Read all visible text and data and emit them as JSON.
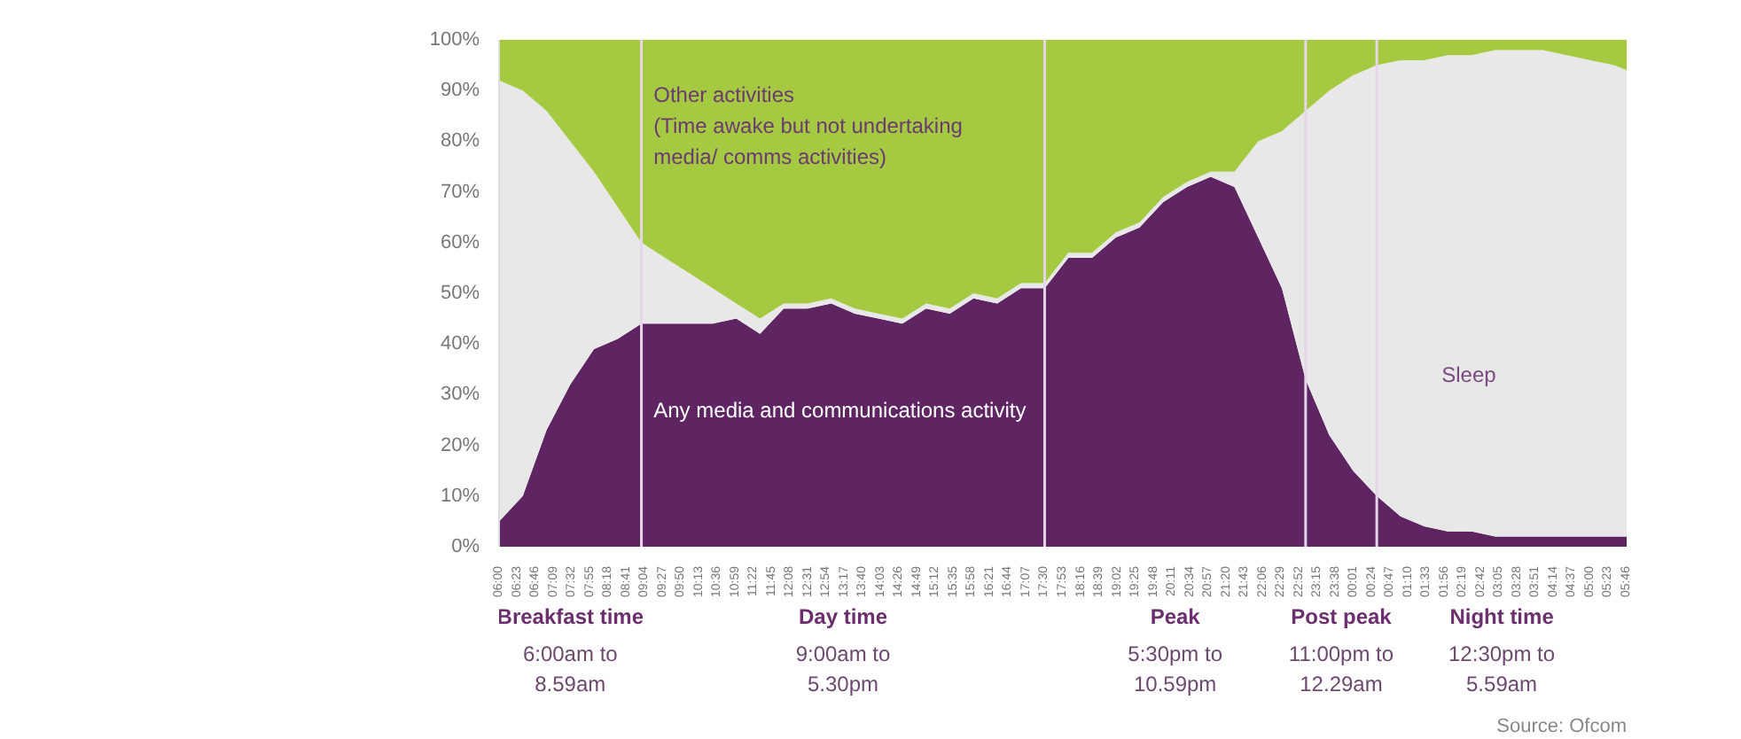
{
  "chart_data": {
    "type": "area",
    "stacked": true,
    "x": [
      "2000-01-01T06:00",
      "2000-01-01T06:30",
      "2000-01-01T07:00",
      "2000-01-01T07:30",
      "2000-01-01T08:00",
      "2000-01-01T08:30",
      "2000-01-01T09:00",
      "2000-01-01T09:30",
      "2000-01-01T10:00",
      "2000-01-01T10:30",
      "2000-01-01T11:00",
      "2000-01-01T11:30",
      "2000-01-01T12:00",
      "2000-01-01T12:30",
      "2000-01-01T13:00",
      "2000-01-01T13:30",
      "2000-01-01T14:00",
      "2000-01-01T14:30",
      "2000-01-01T15:00",
      "2000-01-01T15:30",
      "2000-01-01T16:00",
      "2000-01-01T16:30",
      "2000-01-01T17:00",
      "2000-01-01T17:30",
      "2000-01-01T18:00",
      "2000-01-01T18:30",
      "2000-01-01T19:00",
      "2000-01-01T19:30",
      "2000-01-01T20:00",
      "2000-01-01T20:30",
      "2000-01-01T21:00",
      "2000-01-01T21:30",
      "2000-01-01T22:00",
      "2000-01-01T22:30",
      "2000-01-01T23:00",
      "2000-01-01T23:30",
      "2000-01-02T00:00",
      "2000-01-02T00:30",
      "2000-01-02T01:00",
      "2000-01-02T01:30",
      "2000-01-02T02:00",
      "2000-01-02T02:30",
      "2000-01-02T03:00",
      "2000-01-02T03:30",
      "2000-01-02T04:00",
      "2000-01-02T04:30",
      "2000-01-02T05:00",
      "2000-01-02T05:30",
      "2000-01-02T05:46"
    ],
    "series": [
      {
        "name": "Any media and communications activity",
        "color": "#5f2462",
        "values": [
          5,
          10,
          23,
          32,
          39,
          41,
          44,
          44,
          44,
          44,
          45,
          42,
          47,
          47,
          48,
          46,
          45,
          44,
          47,
          46,
          49,
          48,
          51,
          51,
          57,
          57,
          61,
          63,
          68,
          71,
          73,
          71,
          61,
          51,
          33,
          22,
          15,
          10,
          6,
          4,
          3,
          3,
          2,
          2,
          2,
          2,
          2,
          2,
          2
        ]
      },
      {
        "name": "Sleep",
        "color": "#e8e8e8",
        "values": [
          87,
          80,
          63,
          48,
          35,
          26,
          16,
          13,
          10,
          7,
          3,
          3,
          1,
          1,
          1,
          1,
          1,
          1,
          1,
          1,
          1,
          1,
          1,
          1,
          1,
          1,
          1,
          1,
          1,
          1,
          1,
          3,
          19,
          31,
          53,
          68,
          78,
          85,
          90,
          92,
          94,
          94,
          96,
          96,
          96,
          95,
          94,
          93,
          92
        ]
      },
      {
        "name": "Other activities\n(Time awake but not undertaking\nmedia/ comms activities)",
        "color": "#a5c941",
        "values": [
          8,
          10,
          14,
          20,
          26,
          33,
          40,
          43,
          46,
          49,
          52,
          55,
          52,
          52,
          51,
          53,
          54,
          55,
          52,
          53,
          50,
          51,
          48,
          48,
          42,
          42,
          38,
          36,
          31,
          28,
          26,
          26,
          20,
          18,
          14,
          10,
          7,
          5,
          4,
          4,
          3,
          3,
          2,
          2,
          2,
          3,
          4,
          5,
          6
        ]
      }
    ],
    "xlim": [
      "2000-01-01T06:00",
      "2000-01-02T05:46"
    ],
    "xticks": [
      {
        "value": "2000-01-01T06:00",
        "label": "06:00"
      },
      {
        "value": "2000-01-01T06:23",
        "label": "06:23"
      },
      {
        "value": "2000-01-01T06:46",
        "label": "06:46"
      },
      {
        "value": "2000-01-01T07:09",
        "label": "07:09"
      },
      {
        "value": "2000-01-01T07:32",
        "label": "07:32"
      },
      {
        "value": "2000-01-01T07:55",
        "label": "07:55"
      },
      {
        "value": "2000-01-01T08:18",
        "label": "08:18"
      },
      {
        "value": "2000-01-01T08:41",
        "label": "08:41"
      },
      {
        "value": "2000-01-01T09:04",
        "label": "09:04"
      },
      {
        "value": "2000-01-01T09:27",
        "label": "09:27"
      },
      {
        "value": "2000-01-01T09:50",
        "label": "09:50"
      },
      {
        "value": "2000-01-01T10:13",
        "label": "10:13"
      },
      {
        "value": "2000-01-01T10:36",
        "label": "10:36"
      },
      {
        "value": "2000-01-01T10:59",
        "label": "10:59"
      },
      {
        "value": "2000-01-01T11:22",
        "label": "11:22"
      },
      {
        "value": "2000-01-01T11:45",
        "label": "11:45"
      },
      {
        "value": "2000-01-01T12:08",
        "label": "12:08"
      },
      {
        "value": "2000-01-01T12:31",
        "label": "12:31"
      },
      {
        "value": "2000-01-01T12:54",
        "label": "12:54"
      },
      {
        "value": "2000-01-01T13:17",
        "label": "13:17"
      },
      {
        "value": "2000-01-01T13:40",
        "label": "13:40"
      },
      {
        "value": "2000-01-01T14:03",
        "label": "14:03"
      },
      {
        "value": "2000-01-01T14:26",
        "label": "14:26"
      },
      {
        "value": "2000-01-01T14:49",
        "label": "14:49"
      },
      {
        "value": "2000-01-01T15:12",
        "label": "15:12"
      },
      {
        "value": "2000-01-01T15:35",
        "label": "15:35"
      },
      {
        "value": "2000-01-01T15:58",
        "label": "15:58"
      },
      {
        "value": "2000-01-01T16:21",
        "label": "16:21"
      },
      {
        "value": "2000-01-01T16:44",
        "label": "16:44"
      },
      {
        "value": "2000-01-01T17:07",
        "label": "17:07"
      },
      {
        "value": "2000-01-01T17:30",
        "label": "17:30"
      },
      {
        "value": "2000-01-01T17:53",
        "label": "17:53"
      },
      {
        "value": "2000-01-01T18:16",
        "label": "18:16"
      },
      {
        "value": "2000-01-01T18:39",
        "label": "18:39"
      },
      {
        "value": "2000-01-01T19:02",
        "label": "19:02"
      },
      {
        "value": "2000-01-01T19:25",
        "label": "19:25"
      },
      {
        "value": "2000-01-01T19:48",
        "label": "19:48"
      },
      {
        "value": "2000-01-01T20:11",
        "label": "20:11"
      },
      {
        "value": "2000-01-01T20:34",
        "label": "20:34"
      },
      {
        "value": "2000-01-01T20:57",
        "label": "20:57"
      },
      {
        "value": "2000-01-01T21:20",
        "label": "21:20"
      },
      {
        "value": "2000-01-01T21:43",
        "label": "21:43"
      },
      {
        "value": "2000-01-01T22:06",
        "label": "22:06"
      },
      {
        "value": "2000-01-01T22:29",
        "label": "22:29"
      },
      {
        "value": "2000-01-01T22:52",
        "label": "22:52"
      },
      {
        "value": "2000-01-01T23:15",
        "label": "23:15"
      },
      {
        "value": "2000-01-01T23:38",
        "label": "23:38"
      },
      {
        "value": "2000-01-02T00:01",
        "label": "00:01"
      },
      {
        "value": "2000-01-02T00:24",
        "label": "00:24"
      },
      {
        "value": "2000-01-02T00:47",
        "label": "00:47"
      },
      {
        "value": "2000-01-02T01:10",
        "label": "01:10"
      },
      {
        "value": "2000-01-02T01:33",
        "label": "01:33"
      },
      {
        "value": "2000-01-02T01:56",
        "label": "01:56"
      },
      {
        "value": "2000-01-02T02:19",
        "label": "02:19"
      },
      {
        "value": "2000-01-02T02:42",
        "label": "02:42"
      },
      {
        "value": "2000-01-02T03:05",
        "label": "03:05"
      },
      {
        "value": "2000-01-02T03:28",
        "label": "03:28"
      },
      {
        "value": "2000-01-02T03:51",
        "label": "03:51"
      },
      {
        "value": "2000-01-02T04:14",
        "label": "04:14"
      },
      {
        "value": "2000-01-02T04:37",
        "label": "04:37"
      },
      {
        "value": "2000-01-02T05:00",
        "label": "05:00"
      },
      {
        "value": "2000-01-02T05:23",
        "label": "05:23"
      },
      {
        "value": "2000-01-02T05:46",
        "label": "05:46"
      }
    ],
    "ylim": [
      0,
      100
    ],
    "yticks": [
      {
        "value": 0,
        "label": "0%"
      },
      {
        "value": 10,
        "label": "10%"
      },
      {
        "value": 20,
        "label": "20%"
      },
      {
        "value": 30,
        "label": "30%"
      },
      {
        "value": 40,
        "label": "40%"
      },
      {
        "value": 50,
        "label": "50%"
      },
      {
        "value": 60,
        "label": "60%"
      },
      {
        "value": 70,
        "label": "70%"
      },
      {
        "value": 80,
        "label": "80%"
      },
      {
        "value": 90,
        "label": "90%"
      },
      {
        "value": 100,
        "label": "100%"
      }
    ],
    "ref_lines": [
      {
        "axis": "x",
        "value": "2000-01-01T09:00",
        "color": "#e6d6ea"
      },
      {
        "axis": "x",
        "value": "2000-01-01T17:30",
        "color": "#e6d6ea"
      },
      {
        "axis": "x",
        "value": "2000-01-01T23:00",
        "color": "#e6d6ea"
      },
      {
        "axis": "x",
        "value": "2000-01-02T00:30",
        "color": "#e6d6ea"
      }
    ],
    "annotations": [
      "Breakfast time",
      "6:00am to\n8.59am",
      "Day time",
      "9:00am to\n5.30pm",
      "Peak",
      "5:30pm to\n10.59pm",
      "Post peak",
      "11:00pm to\n12.29am",
      "Night time",
      "12:30pm to\n5.59am",
      "Source: Ofcom"
    ]
  }
}
